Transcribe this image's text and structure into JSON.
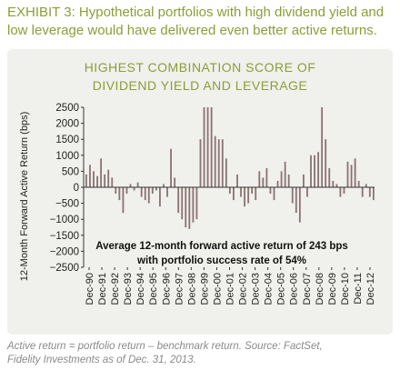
{
  "exhibit": {
    "title_line1": "EXHIBIT 3: Hypothetical portfolios with high dividend yield and",
    "title_line2": "low leverage would have delivered even better active returns."
  },
  "footnote": {
    "line1": "Active return = portfolio return – benchmark return. Source: FactSet,",
    "line2": "Fidelity Investments as of Dec. 31, 2013."
  },
  "colors": {
    "title_accent": "#8a9e38",
    "bar": "#8a7373",
    "axis": "#333333",
    "panel_background": "#f0f0ec"
  },
  "chart_data": {
    "type": "bar",
    "title_line1": "HIGHEST COMBINATION SCORE OF",
    "title_line2": "DIVIDEND YIELD AND LEVERAGE",
    "xlabel": "",
    "ylabel": "12-Month Forward Active Return (bps)",
    "ylim": [
      -2500,
      2500
    ],
    "yticks": [
      -2500,
      -2000,
      -1500,
      -1000,
      -500,
      0,
      500,
      1000,
      1500,
      2000,
      2500
    ],
    "grid": false,
    "legend": "none",
    "x_start": "Dec-90",
    "x_tick_labels": [
      "Dec-90",
      "Dec-91",
      "Dec-92",
      "Dec-93",
      "Dec-94",
      "Dec-95",
      "Dec-96",
      "Dec-97",
      "Dec-98",
      "Dec-99",
      "Dec-00",
      "Dec-01",
      "Dec-02",
      "Dec-03",
      "Dec-04",
      "Dec-05",
      "Dec-06",
      "Dec-07",
      "Dec-08",
      "Dec-09",
      "Dec-10",
      "Dec-11",
      "Dec-12"
    ],
    "annotation_line1": "Average 12-month forward active return of 243 bps",
    "annotation_line2": "with portfolio success rate of 54%",
    "values": [
      400,
      700,
      500,
      350,
      900,
      400,
      550,
      300,
      -200,
      -400,
      -800,
      -200,
      100,
      -100,
      150,
      -300,
      -400,
      -500,
      -200,
      -100,
      -600,
      100,
      -300,
      1200,
      300,
      -800,
      -1000,
      -1250,
      -1300,
      -1100,
      -1000,
      1500,
      2500,
      2500,
      2500,
      1600,
      1500,
      1500,
      900,
      -200,
      -400,
      400,
      -300,
      -600,
      -500,
      -200,
      -400,
      500,
      300,
      600,
      -200,
      -400,
      200,
      500,
      800,
      400,
      -500,
      -800,
      -1100,
      400,
      -300,
      1000,
      1000,
      1100,
      2500,
      1500,
      600,
      200,
      100,
      -300,
      -200,
      800,
      700,
      900,
      200,
      -300,
      100,
      -300,
      -400
    ]
  }
}
